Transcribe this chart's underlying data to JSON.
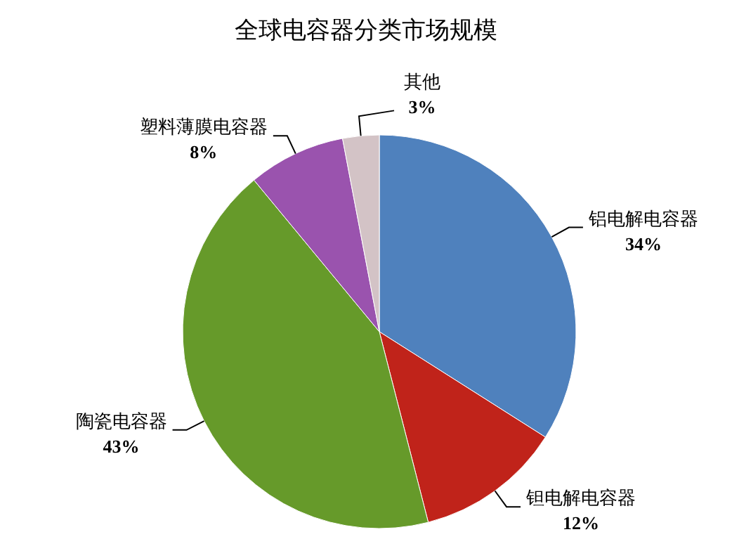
{
  "chart_data": {
    "type": "pie",
    "title": "全球电容器分类市场规模",
    "categories": [
      "铝电解电容器",
      "钽电解电容器",
      "陶瓷电容器",
      "塑料薄膜电容器",
      "其他"
    ],
    "values": [
      34,
      12,
      43,
      8,
      3
    ],
    "value_labels": [
      "34%",
      "12%",
      "43%",
      "8%",
      "3%"
    ],
    "colors": [
      "#4f81bd",
      "#c0231a",
      "#669a2a",
      "#9a53ae",
      "#d3c3c6"
    ]
  }
}
